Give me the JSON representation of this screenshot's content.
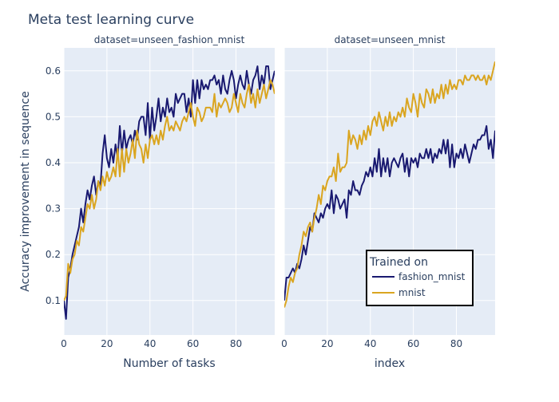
{
  "chart_data": {
    "type": "line",
    "title": "Meta test learning curve",
    "ylabel": "Accuracy improvement in sequence",
    "ylim": [
      0.025,
      0.65
    ],
    "yticks": [
      0.1,
      0.2,
      0.3,
      0.4,
      0.5,
      0.6
    ],
    "xticks": [
      0,
      20,
      40,
      60,
      80
    ],
    "xlim": [
      0,
      98
    ],
    "legend": {
      "title": "Trained on",
      "placement": "inside-bottom-right",
      "entries": [
        {
          "name": "fashion_mnist",
          "color": "#191970"
        },
        {
          "name": "mnist",
          "color": "#DAA520"
        }
      ]
    },
    "panels": [
      {
        "facet_label": "dataset=unseen_fashion_mnist",
        "xlabel": "Number of tasks",
        "series": [
          {
            "name": "fashion_mnist",
            "color": "#191970",
            "values": [
              0.1,
              0.06,
              0.15,
              0.17,
              0.2,
              0.22,
              0.24,
              0.26,
              0.3,
              0.27,
              0.31,
              0.34,
              0.32,
              0.35,
              0.37,
              0.33,
              0.36,
              0.35,
              0.42,
              0.46,
              0.41,
              0.39,
              0.43,
              0.4,
              0.44,
              0.41,
              0.48,
              0.42,
              0.47,
              0.43,
              0.45,
              0.46,
              0.44,
              0.47,
              0.45,
              0.49,
              0.5,
              0.5,
              0.46,
              0.53,
              0.45,
              0.52,
              0.47,
              0.5,
              0.54,
              0.49,
              0.52,
              0.5,
              0.54,
              0.51,
              0.52,
              0.5,
              0.55,
              0.53,
              0.54,
              0.55,
              0.55,
              0.51,
              0.54,
              0.5,
              0.58,
              0.53,
              0.58,
              0.54,
              0.58,
              0.56,
              0.57,
              0.56,
              0.58,
              0.58,
              0.59,
              0.57,
              0.58,
              0.55,
              0.59,
              0.56,
              0.55,
              0.58,
              0.6,
              0.58,
              0.54,
              0.57,
              0.59,
              0.57,
              0.56,
              0.6,
              0.57,
              0.55,
              0.58,
              0.59,
              0.61,
              0.56,
              0.59,
              0.57,
              0.61,
              0.61,
              0.56,
              0.58,
              0.6
            ]
          },
          {
            "name": "mnist",
            "color": "#DAA520",
            "values": [
              0.1,
              0.11,
              0.18,
              0.16,
              0.19,
              0.2,
              0.23,
              0.22,
              0.26,
              0.25,
              0.28,
              0.31,
              0.3,
              0.33,
              0.3,
              0.32,
              0.36,
              0.34,
              0.37,
              0.35,
              0.38,
              0.36,
              0.37,
              0.39,
              0.37,
              0.43,
              0.37,
              0.43,
              0.38,
              0.43,
              0.4,
              0.42,
              0.45,
              0.41,
              0.47,
              0.44,
              0.43,
              0.4,
              0.44,
              0.41,
              0.45,
              0.46,
              0.44,
              0.46,
              0.44,
              0.47,
              0.45,
              0.48,
              0.5,
              0.47,
              0.48,
              0.47,
              0.49,
              0.48,
              0.47,
              0.49,
              0.5,
              0.49,
              0.51,
              0.53,
              0.5,
              0.48,
              0.52,
              0.51,
              0.49,
              0.5,
              0.52,
              0.52,
              0.52,
              0.51,
              0.55,
              0.5,
              0.53,
              0.52,
              0.53,
              0.54,
              0.53,
              0.51,
              0.52,
              0.55,
              0.53,
              0.51,
              0.55,
              0.53,
              0.52,
              0.55,
              0.57,
              0.53,
              0.55,
              0.52,
              0.56,
              0.53,
              0.55,
              0.57,
              0.54,
              0.56,
              0.58,
              0.57,
              0.55
            ]
          }
        ]
      },
      {
        "facet_label": "dataset=unseen_mnist",
        "xlabel": "index",
        "series": [
          {
            "name": "fashion_mnist",
            "color": "#191970",
            "values": [
              0.1,
              0.15,
              0.15,
              0.16,
              0.17,
              0.16,
              0.18,
              0.17,
              0.19,
              0.22,
              0.2,
              0.23,
              0.26,
              0.25,
              0.29,
              0.28,
              0.27,
              0.29,
              0.28,
              0.3,
              0.31,
              0.3,
              0.34,
              0.29,
              0.33,
              0.32,
              0.3,
              0.31,
              0.32,
              0.28,
              0.34,
              0.33,
              0.36,
              0.34,
              0.34,
              0.33,
              0.35,
              0.36,
              0.38,
              0.37,
              0.39,
              0.37,
              0.41,
              0.38,
              0.43,
              0.37,
              0.41,
              0.38,
              0.41,
              0.37,
              0.4,
              0.41,
              0.4,
              0.39,
              0.41,
              0.42,
              0.38,
              0.41,
              0.37,
              0.41,
              0.4,
              0.41,
              0.39,
              0.42,
              0.41,
              0.41,
              0.43,
              0.41,
              0.43,
              0.4,
              0.42,
              0.41,
              0.43,
              0.42,
              0.45,
              0.42,
              0.45,
              0.39,
              0.44,
              0.39,
              0.42,
              0.41,
              0.43,
              0.41,
              0.44,
              0.42,
              0.4,
              0.42,
              0.44,
              0.43,
              0.45,
              0.45,
              0.46,
              0.46,
              0.48,
              0.43,
              0.45,
              0.41,
              0.47
            ]
          },
          {
            "name": "mnist",
            "color": "#DAA520",
            "values": [
              0.085,
              0.1,
              0.13,
              0.15,
              0.14,
              0.16,
              0.17,
              0.2,
              0.22,
              0.25,
              0.24,
              0.26,
              0.27,
              0.25,
              0.28,
              0.3,
              0.33,
              0.31,
              0.35,
              0.34,
              0.36,
              0.37,
              0.37,
              0.39,
              0.36,
              0.42,
              0.38,
              0.39,
              0.39,
              0.4,
              0.47,
              0.44,
              0.46,
              0.45,
              0.43,
              0.46,
              0.44,
              0.47,
              0.45,
              0.48,
              0.46,
              0.49,
              0.5,
              0.48,
              0.51,
              0.49,
              0.47,
              0.5,
              0.48,
              0.51,
              0.48,
              0.5,
              0.49,
              0.51,
              0.5,
              0.52,
              0.5,
              0.54,
              0.52,
              0.51,
              0.55,
              0.53,
              0.5,
              0.55,
              0.53,
              0.52,
              0.56,
              0.55,
              0.53,
              0.56,
              0.53,
              0.55,
              0.54,
              0.57,
              0.54,
              0.57,
              0.55,
              0.58,
              0.56,
              0.57,
              0.56,
              0.58,
              0.58,
              0.57,
              0.59,
              0.58,
              0.58,
              0.59,
              0.59,
              0.58,
              0.59,
              0.58,
              0.58,
              0.59,
              0.57,
              0.59,
              0.58,
              0.6,
              0.62
            ]
          }
        ]
      }
    ]
  }
}
